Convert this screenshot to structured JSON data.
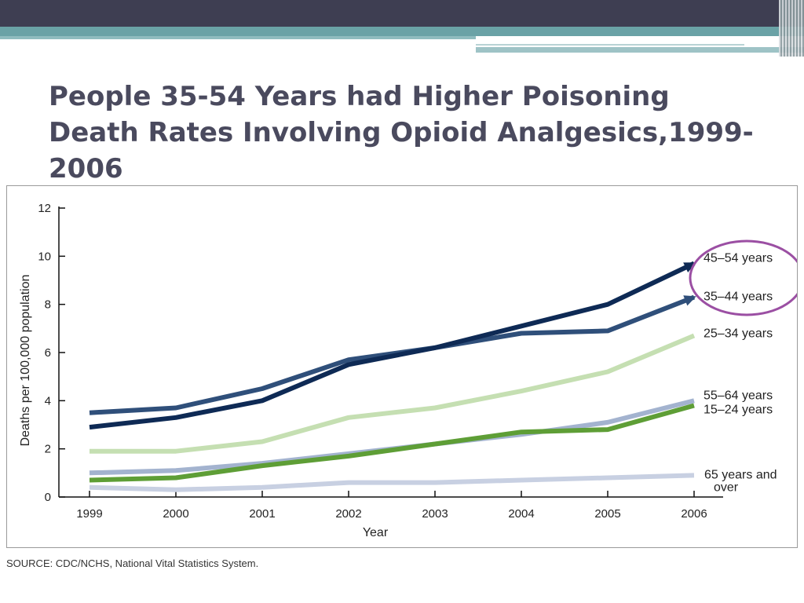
{
  "slide": {
    "title": "People 35-54 Years had Higher Poisoning Death Rates Involving Opioid Analgesics,1999-2006",
    "source": "SOURCE: CDC/NCHS, National Vital Statistics System."
  },
  "colors": {
    "banner_dark": "#3e3e52",
    "banner_teal": "#6aa2a6",
    "title": "#4a4a5e",
    "highlight_circle": "#9b4fa3"
  },
  "chart_data": {
    "type": "line",
    "x": [
      1999,
      2000,
      2001,
      2002,
      2003,
      2004,
      2005,
      2006
    ],
    "xlabel": "Year",
    "ylabel": "Deaths per 100,000 population",
    "ylim": [
      0,
      12
    ],
    "yticks": [
      0,
      2,
      4,
      6,
      8,
      10,
      12
    ],
    "grid": false,
    "legend": "direct labels at right end of lines",
    "highlight": "circle around 45–54 years and 35–44 years labels",
    "series": [
      {
        "name": "45–54 years",
        "color": "#0e2a55",
        "values": [
          2.9,
          3.3,
          4.0,
          5.5,
          6.2,
          7.1,
          8.0,
          9.7
        ]
      },
      {
        "name": "35–44 years",
        "color": "#2f4f7a",
        "values": [
          3.5,
          3.7,
          4.5,
          5.7,
          6.2,
          6.8,
          6.9,
          8.3
        ]
      },
      {
        "name": "25–34 years",
        "color": "#c5dfb2",
        "values": [
          1.9,
          1.9,
          2.3,
          3.3,
          3.7,
          4.4,
          5.2,
          6.7
        ]
      },
      {
        "name": "55–64 years",
        "color": "#a3b3cf",
        "values": [
          1.0,
          1.1,
          1.4,
          1.8,
          2.2,
          2.6,
          3.1,
          4.0
        ]
      },
      {
        "name": "15–24 years",
        "color": "#5e9e36",
        "values": [
          0.7,
          0.8,
          1.3,
          1.7,
          2.2,
          2.7,
          2.8,
          3.8
        ]
      },
      {
        "name": "65 years and over",
        "color": "#c8d0e2",
        "values": [
          0.4,
          0.3,
          0.4,
          0.6,
          0.6,
          0.7,
          0.8,
          0.9
        ]
      }
    ]
  }
}
